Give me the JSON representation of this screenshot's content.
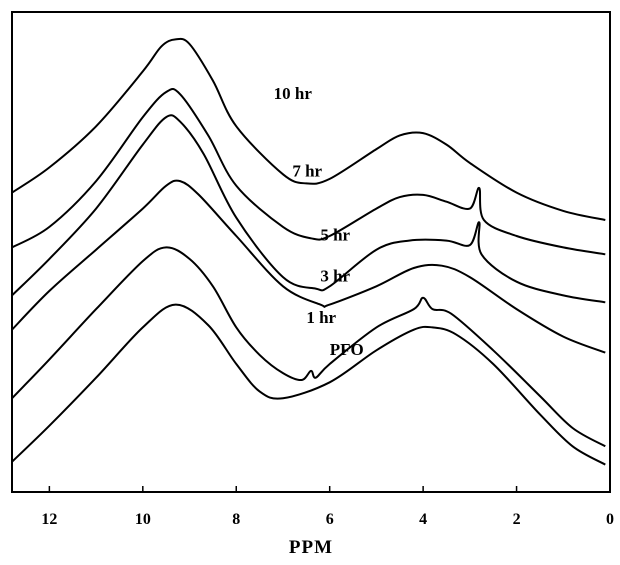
{
  "chart_data": {
    "type": "line",
    "xlabel": "PPM",
    "ylabel": "",
    "xlim": [
      12.8,
      0
    ],
    "xticks": [
      12,
      10,
      8,
      6,
      4,
      2,
      0
    ],
    "yticks_shown": false,
    "grid": false,
    "legend": "none",
    "series": [
      {
        "name": "PFO",
        "color": "#000000",
        "points": [
          [
            12.8,
            0.66
          ],
          [
            12,
            1.45
          ],
          [
            11,
            2.5
          ],
          [
            10,
            3.6
          ],
          [
            9.3,
            4.1
          ],
          [
            8.6,
            3.65
          ],
          [
            8,
            2.8
          ],
          [
            7.5,
            2.2
          ],
          [
            7,
            2.05
          ],
          [
            6,
            2.4
          ],
          [
            5,
            3.1
          ],
          [
            4.2,
            3.55
          ],
          [
            3.8,
            3.6
          ],
          [
            3.3,
            3.45
          ],
          [
            2.5,
            2.8
          ],
          [
            1.5,
            1.7
          ],
          [
            0.8,
            1.0
          ],
          [
            0.1,
            0.6
          ]
        ]
      },
      {
        "name": "1 hr",
        "color": "#000000",
        "points": [
          [
            12.8,
            2.05
          ],
          [
            12,
            2.9
          ],
          [
            11,
            4.0
          ],
          [
            10,
            5.05
          ],
          [
            9.5,
            5.35
          ],
          [
            9,
            5.1
          ],
          [
            8.5,
            4.5
          ],
          [
            8,
            3.6
          ],
          [
            7.5,
            3.0
          ],
          [
            7,
            2.6
          ],
          [
            6.6,
            2.45
          ],
          [
            6.4,
            2.65
          ],
          [
            6.3,
            2.5
          ],
          [
            6,
            2.8
          ],
          [
            5,
            3.6
          ],
          [
            4.2,
            4.0
          ],
          [
            4.0,
            4.25
          ],
          [
            3.8,
            4.0
          ],
          [
            3.4,
            3.9
          ],
          [
            2.5,
            3.1
          ],
          [
            1.5,
            2.1
          ],
          [
            0.8,
            1.4
          ],
          [
            0.1,
            1.0
          ]
        ]
      },
      {
        "name": "3 hr",
        "color": "#000000",
        "points": [
          [
            12.8,
            3.55
          ],
          [
            12,
            4.4
          ],
          [
            11,
            5.3
          ],
          [
            10,
            6.2
          ],
          [
            9.5,
            6.7
          ],
          [
            9.2,
            6.8
          ],
          [
            8.8,
            6.5
          ],
          [
            8,
            5.6
          ],
          [
            7,
            4.5
          ],
          [
            6.2,
            4.1
          ],
          [
            6,
            4.1
          ],
          [
            5,
            4.5
          ],
          [
            4.2,
            4.9
          ],
          [
            3.6,
            4.95
          ],
          [
            3,
            4.7
          ],
          [
            2,
            4.0
          ],
          [
            1,
            3.4
          ],
          [
            0.1,
            3.05
          ]
        ]
      },
      {
        "name": "5 hr",
        "color": "#000000",
        "points": [
          [
            12.8,
            4.3
          ],
          [
            12,
            5.1
          ],
          [
            11,
            6.2
          ],
          [
            10,
            7.6
          ],
          [
            9.5,
            8.2
          ],
          [
            9.2,
            8.1
          ],
          [
            8.7,
            7.4
          ],
          [
            8,
            6.0
          ],
          [
            7,
            4.7
          ],
          [
            6.3,
            4.45
          ],
          [
            6,
            4.5
          ],
          [
            5,
            5.3
          ],
          [
            4.3,
            5.5
          ],
          [
            3.5,
            5.5
          ],
          [
            3.0,
            5.4
          ],
          [
            2.8,
            5.9
          ],
          [
            2.75,
            5.2
          ],
          [
            2,
            4.6
          ],
          [
            1,
            4.3
          ],
          [
            0.1,
            4.15
          ]
        ]
      },
      {
        "name": "7 hr",
        "color": "#000000",
        "points": [
          [
            12.8,
            5.35
          ],
          [
            12,
            5.8
          ],
          [
            11,
            6.8
          ],
          [
            10,
            8.2
          ],
          [
            9.5,
            8.75
          ],
          [
            9.2,
            8.7
          ],
          [
            8.6,
            7.8
          ],
          [
            8,
            6.7
          ],
          [
            7,
            5.8
          ],
          [
            6.4,
            5.55
          ],
          [
            6,
            5.6
          ],
          [
            5,
            6.2
          ],
          [
            4.5,
            6.45
          ],
          [
            4,
            6.5
          ],
          [
            3.5,
            6.35
          ],
          [
            3.0,
            6.2
          ],
          [
            2.8,
            6.65
          ],
          [
            2.7,
            5.95
          ],
          [
            2,
            5.6
          ],
          [
            1,
            5.35
          ],
          [
            0.1,
            5.2
          ]
        ]
      },
      {
        "name": "10 hr",
        "color": "#000000",
        "points": [
          [
            12.8,
            6.55
          ],
          [
            12,
            7.1
          ],
          [
            11,
            8.0
          ],
          [
            10,
            9.2
          ],
          [
            9.6,
            9.75
          ],
          [
            9.3,
            9.9
          ],
          [
            9,
            9.8
          ],
          [
            8.5,
            9.0
          ],
          [
            8,
            8.0
          ],
          [
            7,
            6.95
          ],
          [
            6.5,
            6.75
          ],
          [
            6,
            6.85
          ],
          [
            5,
            7.5
          ],
          [
            4.5,
            7.8
          ],
          [
            4,
            7.85
          ],
          [
            3.5,
            7.6
          ],
          [
            3,
            7.2
          ],
          [
            2,
            6.55
          ],
          [
            1,
            6.15
          ],
          [
            0.1,
            5.95
          ]
        ]
      }
    ],
    "series_labels": [
      {
        "series": "PFO",
        "text": "PFO",
        "at": [
          6.0,
          3.0
        ]
      },
      {
        "series": "1 hr",
        "text": "1 hr",
        "at": [
          6.5,
          3.7
        ]
      },
      {
        "series": "3 hr",
        "text": "3 hr",
        "at": [
          6.2,
          4.6
        ]
      },
      {
        "series": "5 hr",
        "text": "5 hr",
        "at": [
          6.2,
          5.5
        ]
      },
      {
        "series": "7 hr",
        "text": "7 hr",
        "at": [
          6.8,
          6.9
        ]
      },
      {
        "series": "10 hr",
        "text": "10 hr",
        "at": [
          7.2,
          8.6
        ]
      }
    ]
  }
}
